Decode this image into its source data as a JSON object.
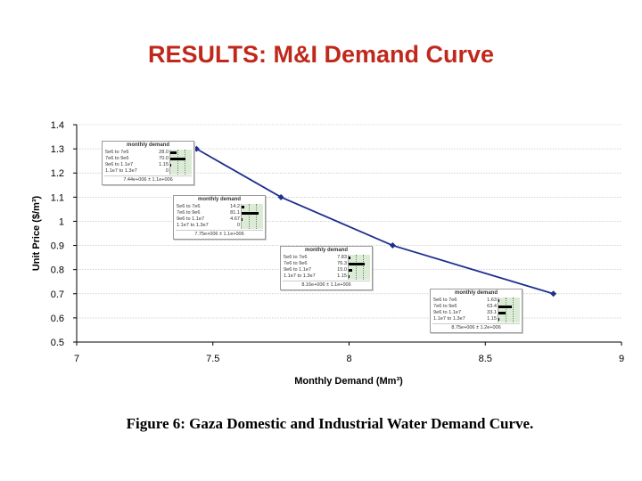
{
  "slide": {
    "title": "RESULTS: M&I Demand Curve",
    "caption": "Figure 6: Gaza Domestic and Industrial Water Demand Curve."
  },
  "chart_data": {
    "type": "line",
    "title": "",
    "xlabel": "Monthly Demand (Mm³)",
    "ylabel": "Unit Price ($/m³)",
    "xlim": [
      7,
      9
    ],
    "ylim": [
      0.5,
      1.4
    ],
    "xticks": [
      "7",
      "7.5",
      "8",
      "8.5",
      "9"
    ],
    "yticks": [
      "0.5",
      "0.6",
      "0.7",
      "0.8",
      "0.9",
      "1",
      "1.1",
      "1.2",
      "1.3",
      "1.4"
    ],
    "grid": true,
    "series": [
      {
        "color": "#1f2f8f",
        "points": [
          {
            "x": 7.44,
            "y": 1.3
          },
          {
            "x": 7.75,
            "y": 1.1
          },
          {
            "x": 8.16,
            "y": 0.9
          },
          {
            "x": 8.75,
            "y": 0.7
          }
        ]
      }
    ]
  },
  "insets": [
    {
      "title": "monthly demand",
      "rows": [
        {
          "range": "5e6 to 7e6",
          "count": "28.0",
          "frac": 0.28
        },
        {
          "range": "7e6 to 9e6",
          "count": "70.0",
          "frac": 0.7
        },
        {
          "range": "9e6 to 1.1e7",
          "count": "1.15",
          "frac": 0.02
        },
        {
          "range": "1.1e7 to 1.3e7",
          "count": "0",
          "frac": 0
        }
      ],
      "footer": "7.44e+006 ± 1.1e+006"
    },
    {
      "title": "monthly demand",
      "rows": [
        {
          "range": "5e6 to 7e6",
          "count": "14.2",
          "frac": 0.14
        },
        {
          "range": "7e6 to 9e6",
          "count": "81.1",
          "frac": 0.81
        },
        {
          "range": "9e6 to 1.1e7",
          "count": "4.67",
          "frac": 0.05
        },
        {
          "range": "1.1e7 to 1.3e7",
          "count": "0",
          "frac": 0
        }
      ],
      "footer": "7.75e+006 ± 1.1e+006"
    },
    {
      "title": "monthly demand",
      "rows": [
        {
          "range": "5e6 to 7e6",
          "count": "7.83",
          "frac": 0.08
        },
        {
          "range": "7e6 to 9e6",
          "count": "76.3",
          "frac": 0.76
        },
        {
          "range": "9e6 to 1.1e7",
          "count": "15.0",
          "frac": 0.15
        },
        {
          "range": "1.1e7 to 1.3e7",
          "count": "1.15",
          "frac": 0.01
        }
      ],
      "footer": "8.16e+006 ± 1.1e+006"
    },
    {
      "title": "monthly demand",
      "rows": [
        {
          "range": "5e6 to 7e6",
          "count": "1.63",
          "frac": 0.02
        },
        {
          "range": "7e6 to 9e6",
          "count": "63.4",
          "frac": 0.63
        },
        {
          "range": "9e6 to 1.1e7",
          "count": "33.1",
          "frac": 0.33
        },
        {
          "range": "1.1e7 to 1.3e7",
          "count": "1.15",
          "frac": 0.01
        }
      ],
      "footer": "8.75e+006 ± 1.2e+006"
    }
  ]
}
